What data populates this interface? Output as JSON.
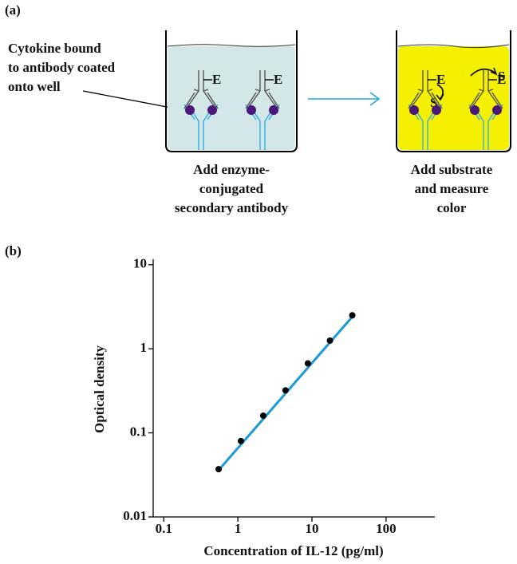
{
  "panel_a": {
    "label": "(a)",
    "callout": [
      "Cytokine bound",
      "to antibody coated",
      "onto well"
    ],
    "steps": [
      {
        "caption": [
          "Add enzyme-",
          "conjugated",
          "secondary antibody"
        ]
      },
      {
        "caption": [
          "Add substrate",
          "and measure",
          "color"
        ]
      }
    ],
    "enzyme": "E",
    "substrate": "S"
  },
  "panel_b_label": "(b)",
  "chart_data": {
    "type": "scatter",
    "x_label": "Concentration of IL-12 (pg/ml)",
    "y_label": "Optical density",
    "x": [
      0.55,
      1.1,
      2.2,
      4.4,
      8.8,
      17.5,
      35
    ],
    "values": [
      0.037,
      0.08,
      0.16,
      0.32,
      0.67,
      1.25,
      2.5
    ],
    "color": "#000000",
    "fit": {
      "x": [
        0.55,
        35
      ],
      "values": [
        0.036,
        2.4
      ],
      "color": "#1a9ad6"
    },
    "xscale": "log",
    "yscale": "log",
    "xlim": [
      0.072,
      455
    ],
    "ylim": [
      0.01,
      11.6
    ],
    "xticks": [
      0.1,
      1,
      10,
      100
    ],
    "yticks": [
      0.01,
      0.1,
      1,
      10
    ]
  }
}
